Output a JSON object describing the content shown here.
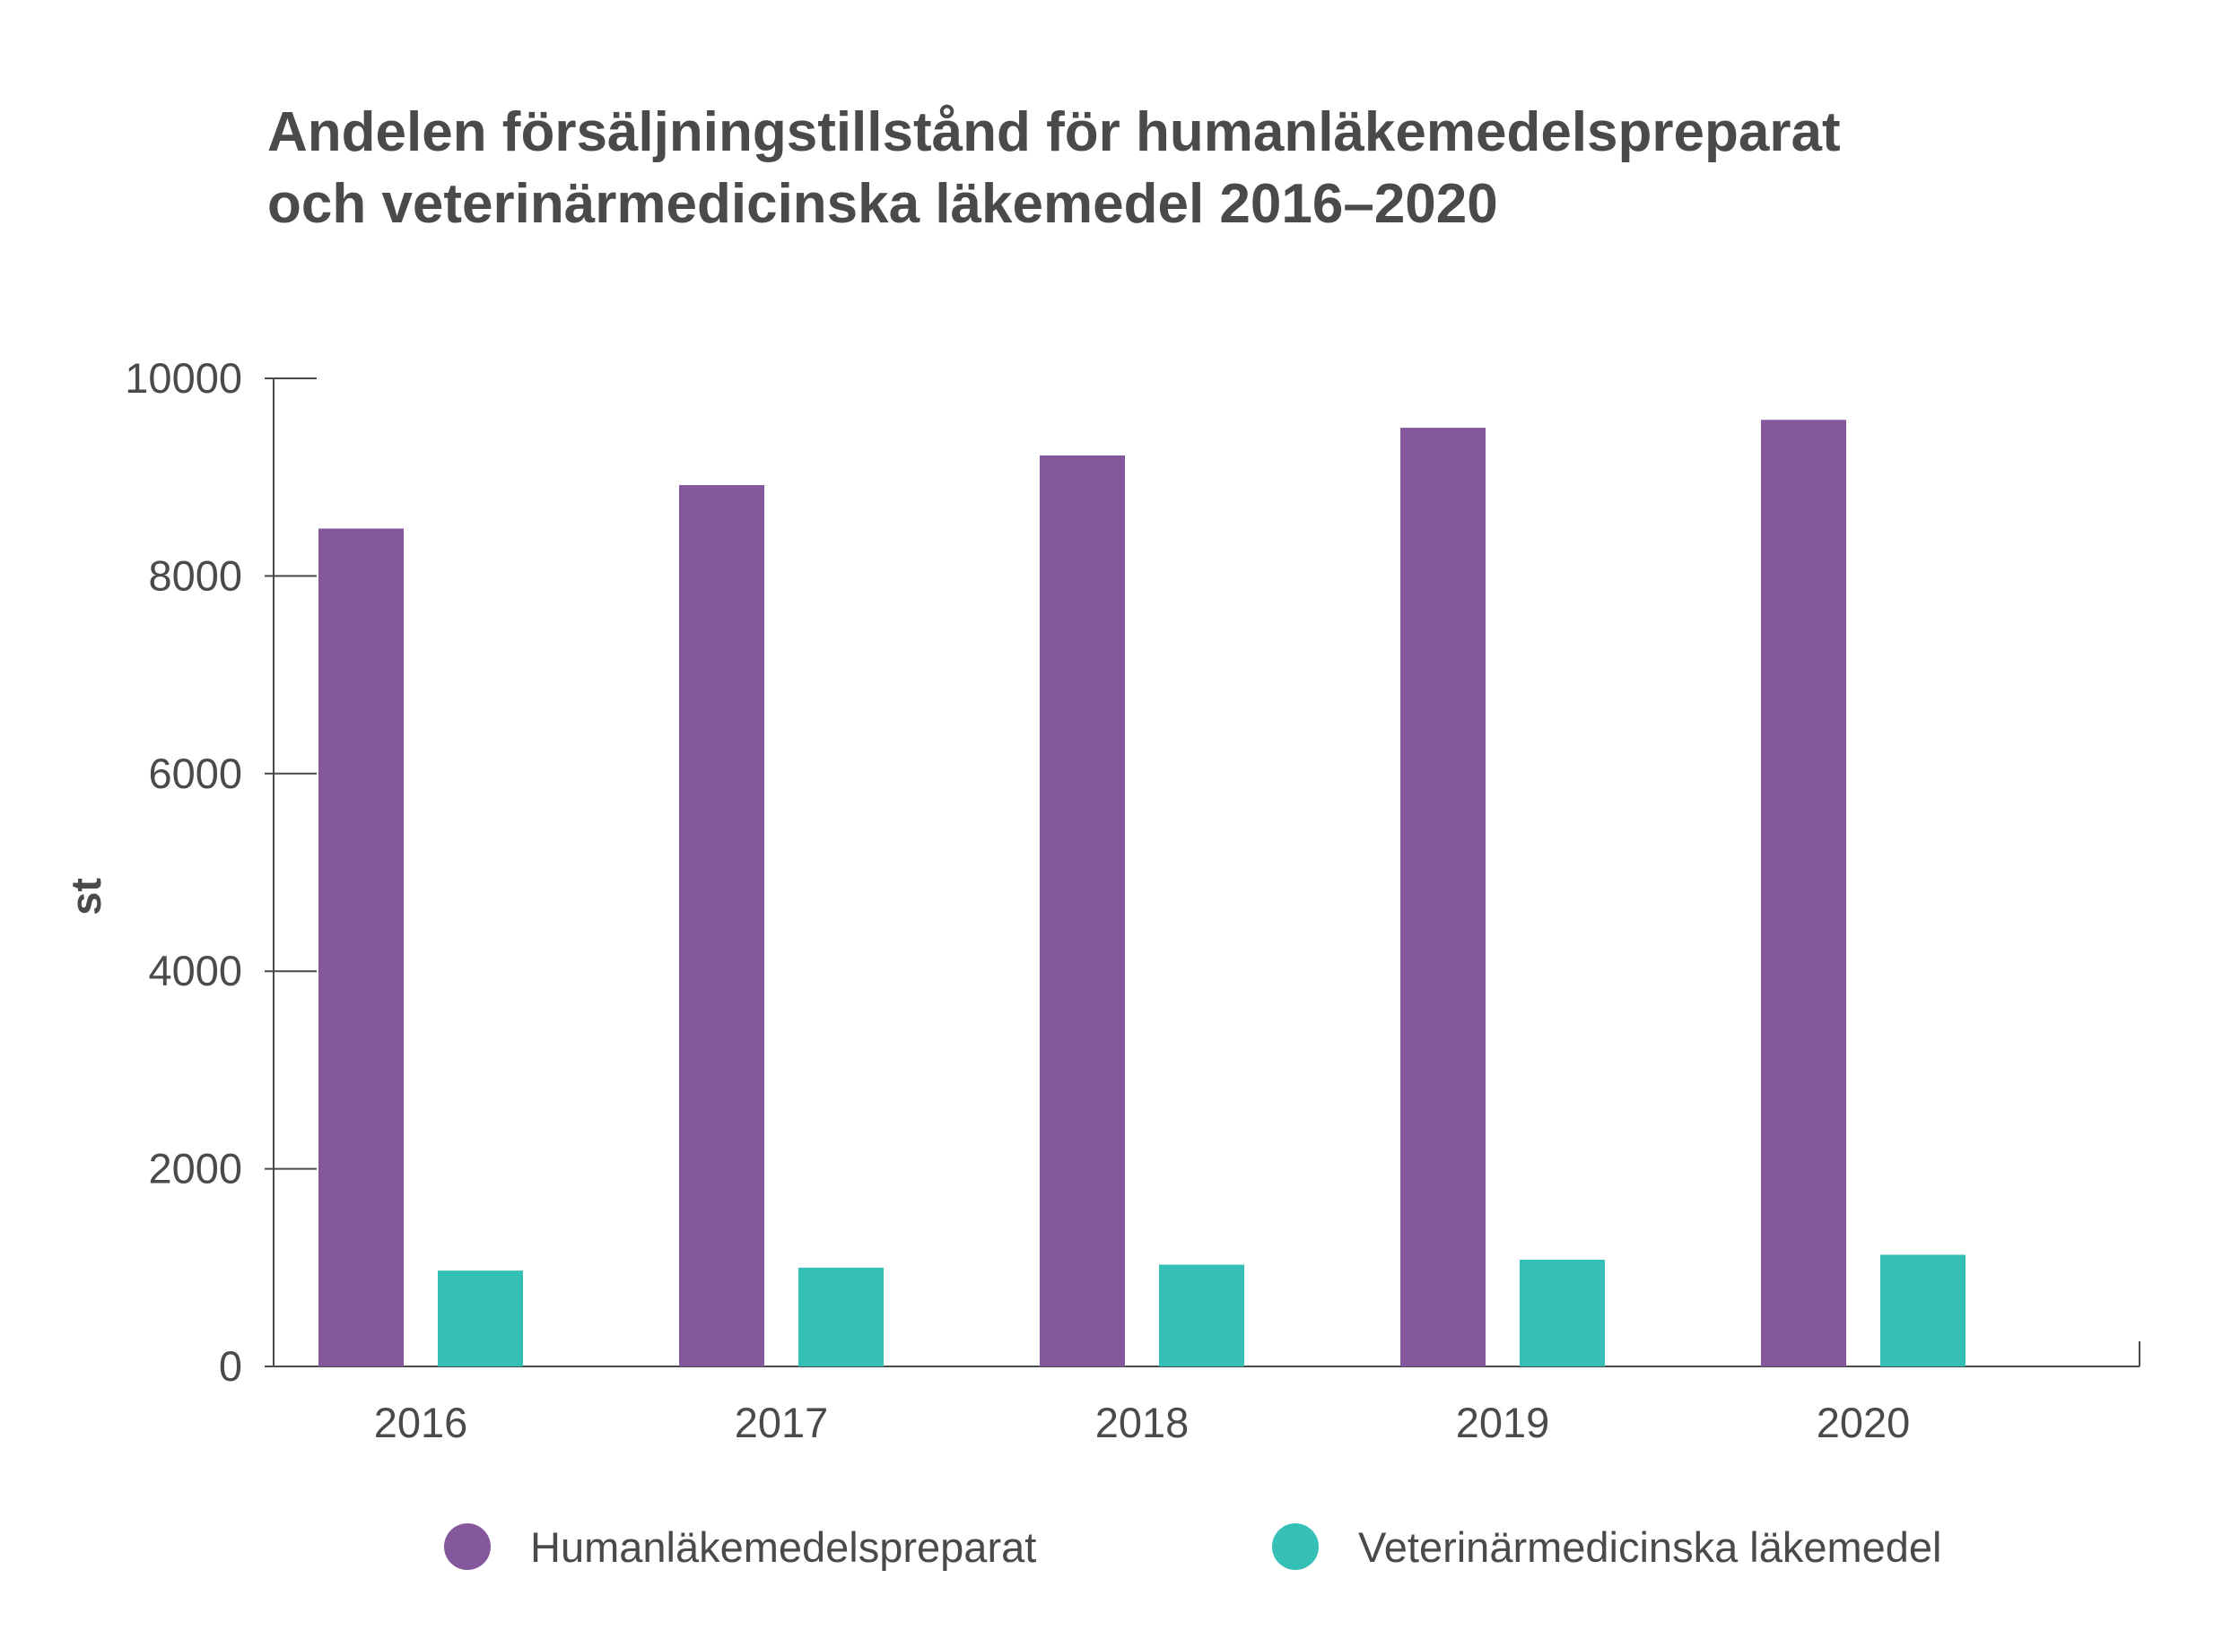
{
  "chart_data": {
    "type": "bar",
    "title_lines": [
      "Andelen försäljningstillstånd för humanläkemedelspreparat",
      "och veterinärmedicinska läkemedel 2016–2020"
    ],
    "xlabel": "",
    "ylabel": "st",
    "ylim": [
      0,
      10000
    ],
    "yticks": [
      0,
      2000,
      4000,
      6000,
      8000,
      10000
    ],
    "categories": [
      "2016",
      "2017",
      "2018",
      "2019",
      "2020"
    ],
    "series": [
      {
        "name": "Humanläkemedelspreparat",
        "color": "#85589e",
        "values": [
          8480,
          8920,
          9220,
          9500,
          9580
        ]
      },
      {
        "name": "Veterinärmedicinska läkemedel",
        "color": "#35c0b7",
        "values": [
          970,
          1000,
          1030,
          1080,
          1130
        ]
      }
    ],
    "grid": false,
    "legend_position": "bottom"
  },
  "colors": {
    "text": "#4a4a4a",
    "axis": "#4a4a4a"
  }
}
